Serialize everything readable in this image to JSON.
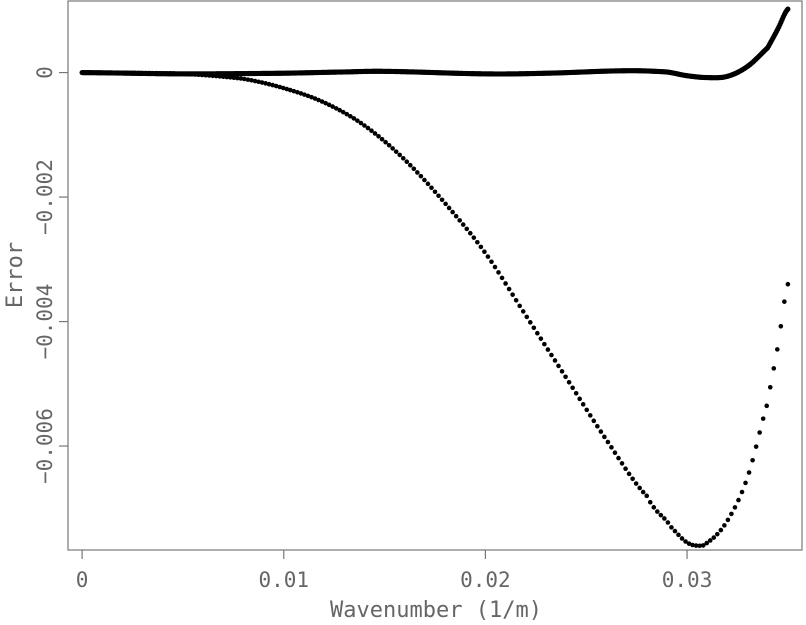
{
  "chart_data": {
    "type": "scatter",
    "title": "",
    "xlabel": "Wavenumber (1/m)",
    "ylabel": "Error",
    "xlim": [
      -0.0007,
      0.0357
    ],
    "ylim": [
      -0.00767,
      0.00115
    ],
    "x_ticks": [
      0,
      0.01,
      0.02,
      0.03
    ],
    "x_tick_labels": [
      "0",
      "0.01",
      "0.02",
      "0.03"
    ],
    "y_ticks": [
      0,
      -0.002,
      -0.004,
      -0.006
    ],
    "y_tick_labels": [
      "0",
      "−0.002",
      "−0.004",
      "−0.006"
    ],
    "grid": false,
    "series": [
      {
        "style": "solid-dots",
        "x": [
          0,
          0.005,
          0.01,
          0.013,
          0.015,
          0.02,
          0.023,
          0.027,
          0.029,
          0.03,
          0.031,
          0.032,
          0.033,
          0.034,
          0.0345,
          0.035
        ],
        "y": [
          0,
          -2e-05,
          -1e-05,
          1e-05,
          2e-05,
          -2e-05,
          -1e-05,
          3e-05,
          1e-05,
          -5e-05,
          -8e-05,
          -6e-05,
          0.0001,
          0.0004,
          0.0007,
          0.00102
        ]
      },
      {
        "style": "dotted",
        "x": [
          0,
          0.005,
          0.008,
          0.01,
          0.012,
          0.014,
          0.016,
          0.018,
          0.02,
          0.022,
          0.024,
          0.026,
          0.028,
          0.029,
          0.0295,
          0.03,
          0.0305,
          0.031,
          0.032,
          0.033,
          0.034,
          0.0345,
          0.035
        ],
        "y": [
          0,
          -2e-05,
          -0.0001,
          -0.00025,
          -0.00048,
          -0.00085,
          -0.0014,
          -0.0021,
          -0.0029,
          -0.0039,
          -0.0049,
          -0.0059,
          -0.0068,
          -0.0072,
          -0.0074,
          -0.00755,
          -0.0076,
          -0.00755,
          -0.0072,
          -0.0065,
          -0.0053,
          -0.0044,
          -0.0034
        ]
      }
    ]
  }
}
